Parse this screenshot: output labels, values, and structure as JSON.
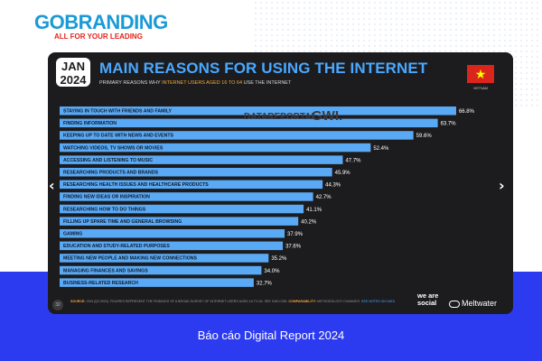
{
  "brand": {
    "logo_text": "GOBRANDING",
    "tagline": "ALL FOR YOUR LEADING"
  },
  "report": {
    "month": "JAN",
    "year": "2024",
    "title": "MAIN REASONS FOR USING THE INTERNET",
    "subtitle_pre": "PRIMARY REASONS WHY",
    "subtitle_highlight": "INTERNET USERS AGED 16 TO 64",
    "subtitle_post": "USE THE INTERNET",
    "country": "VIETNAM",
    "watermark_1": "DATAREPORTAL",
    "watermark_2": "GWI.",
    "page_number": "32",
    "source_label": "SOURCE:",
    "source_text": "GWI (Q3 2023). FIGURES REPRESENT THE FINDINGS OF A BROAD SURVEY OF INTERNET USERS AGED 16 TO 64. SEE GWI.COM.",
    "comparability_label": "COMPARABILITY:",
    "comparability_text": "METHODOLOGY CHANGES.",
    "comparability_link": "SEE NOTES ON DATA",
    "partner_1": "we are social",
    "partner_2": "Meltwater",
    "nav_prev": "‹",
    "nav_next": "›"
  },
  "footer": {
    "caption": "Báo cáo Digital Report 2024"
  },
  "colors": {
    "bar": "#5aa9f5",
    "card": "#1c1c1e",
    "title": "#4aa8ff",
    "band": "#2d3bf0"
  },
  "chart_data": {
    "type": "bar",
    "orientation": "horizontal",
    "categories": [
      "STAYING IN TOUCH WITH FRIENDS AND FAMILY",
      "FINDING INFORMATION",
      "KEEPING UP TO DATE WITH NEWS AND EVENTS",
      "WATCHING VIDEOS, TV SHOWS OR MOVIES",
      "ACCESSING AND LISTENING TO MUSIC",
      "RESEARCHING PRODUCTS AND BRANDS",
      "RESEARCHING HEALTH ISSUES AND HEALTHCARE PRODUCTS",
      "FINDING NEW IDEAS OR INSPIRATION",
      "RESEARCHING HOW TO DO THINGS",
      "FILLING UP SPARE TIME AND GENERAL BROWSING",
      "GAMING",
      "EDUCATION AND STUDY-RELATED PURPOSES",
      "MEETING NEW PEOPLE AND MAKING NEW CONNECTIONS",
      "MANAGING FINANCES AND SAVINGS",
      "BUSINESS-RELATED RESEARCH"
    ],
    "values": [
      66.8,
      63.7,
      59.6,
      52.4,
      47.7,
      45.9,
      44.3,
      42.7,
      41.1,
      40.2,
      37.9,
      37.6,
      35.2,
      34.0,
      32.7
    ],
    "labels": [
      "66.8%",
      "63.7%",
      "59.6%",
      "52.4%",
      "47.7%",
      "45.9%",
      "44.3%",
      "42.7%",
      "41.1%",
      "40.2%",
      "37.9%",
      "37.6%",
      "35.2%",
      "34.0%",
      "32.7%"
    ],
    "unit": "%",
    "xlim": [
      0,
      70
    ],
    "title": "MAIN REASONS FOR USING THE INTERNET",
    "xlabel": "",
    "ylabel": "",
    "grid": false,
    "legend": "none"
  }
}
